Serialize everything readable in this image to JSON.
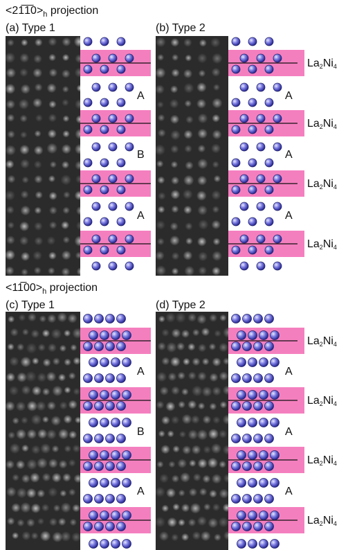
{
  "sections": [
    {
      "title": "<21̅1̅0>",
      "title_sub": "h",
      "title_rest": " projection",
      "panels": [
        {
          "label": "(a) Type 1",
          "layers": [
            "A",
            "B",
            "A"
          ]
        },
        {
          "label": "(b) Type 2",
          "layers": [
            "A",
            "A",
            "A"
          ]
        }
      ]
    },
    {
      "title": "<11̅00>",
      "title_sub": "h",
      "title_rest": " projection",
      "panels": [
        {
          "label": "(c) Type 1",
          "layers": [
            "A",
            "B",
            "A"
          ]
        },
        {
          "label": "(d) Type 2",
          "layers": [
            "A",
            "A",
            "A"
          ]
        }
      ]
    }
  ],
  "band_label": {
    "element1": "La",
    "count1": "2",
    "element2": "Ni",
    "count2": "4"
  }
}
